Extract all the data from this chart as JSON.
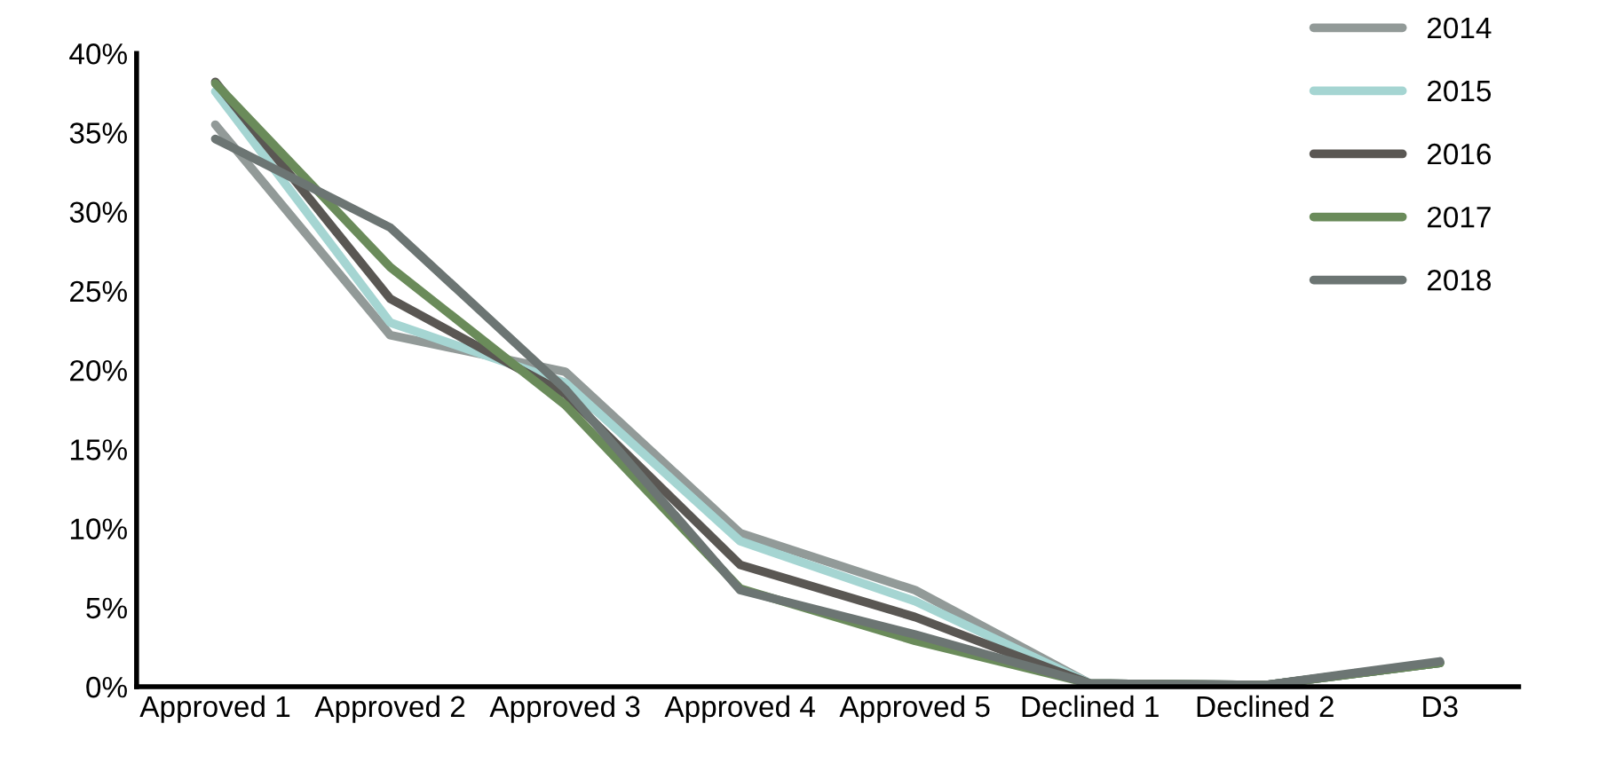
{
  "chart_data": {
    "type": "line",
    "categories": [
      "Approved 1",
      "Approved 2",
      "Approved 3",
      "Approved 4",
      "Approved 5",
      "Declined 1",
      "Declined 2",
      "D3"
    ],
    "series": [
      {
        "name": "2014",
        "color": "#929a98",
        "values": [
          35.5,
          22.2,
          19.9,
          9.7,
          6.1,
          0.2,
          0.1,
          1.5
        ]
      },
      {
        "name": "2015",
        "color": "#a5d5d2",
        "values": [
          37.6,
          23.0,
          19.2,
          9.2,
          5.4,
          0.2,
          0.1,
          1.5
        ]
      },
      {
        "name": "2016",
        "color": "#5a5753",
        "values": [
          38.2,
          24.5,
          18.5,
          7.7,
          4.4,
          0.2,
          0.1,
          1.5
        ]
      },
      {
        "name": "2017",
        "color": "#6a8b5a",
        "values": [
          38.1,
          26.5,
          17.8,
          6.2,
          2.9,
          0.2,
          0.1,
          1.5
        ]
      },
      {
        "name": "2018",
        "color": "#6c7573",
        "values": [
          34.6,
          29.0,
          18.8,
          6.1,
          3.3,
          0.2,
          0.1,
          1.6
        ]
      }
    ],
    "ylim": [
      0,
      40
    ],
    "yticks": [
      {
        "value": 0,
        "label": "0%"
      },
      {
        "value": 5,
        "label": "5%"
      },
      {
        "value": 10,
        "label": "10%"
      },
      {
        "value": 15,
        "label": "15%"
      },
      {
        "value": 20,
        "label": "20%"
      },
      {
        "value": 25,
        "label": "25%"
      },
      {
        "value": 30,
        "label": "30%"
      },
      {
        "value": 35,
        "label": "35%"
      },
      {
        "value": 40,
        "label": "40%"
      }
    ],
    "legend": "top right",
    "grid": false
  }
}
